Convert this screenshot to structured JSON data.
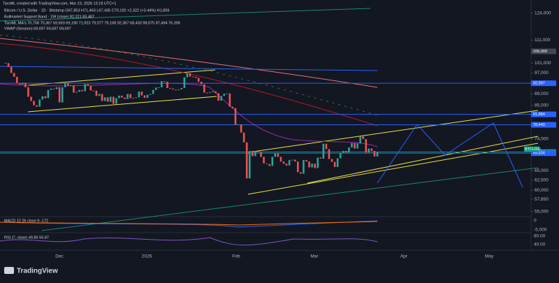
{
  "header": {
    "author_line": "TaroML created with TradingView.com, Mar 23, 2026 13:18 UTC+1",
    "lines": [
      "Bitcoin / U.S. Dollar · 1D · Bitstamp  O67,853  H71,463  L67,435  C70,192  +2,322 (+3.44%)  H1,859",
      "Bullmarket Support Band · 1W (close)  82,221  83,487",
      "TaroML MA's  70,758  70,367  69,693  69,190  71,923  79,077  79,168  92,367  68,433  98,075  87,494  76,306",
      "VWAP (Session)  69,697  69,697  69,697"
    ]
  },
  "chart_data": {
    "type": "candlestick",
    "log_scale": true,
    "ylim": [
      53860,
      130800
    ],
    "yticks": [
      {
        "value": 124000,
        "label": "124,000"
      },
      {
        "value": 111000,
        "label": "111,000"
      },
      {
        "value": 101000,
        "label": "101,000"
      },
      {
        "value": 97000,
        "label": "97,000"
      },
      {
        "value": 89000,
        "label": "89,000"
      },
      {
        "value": 85000,
        "label": "85,000"
      },
      {
        "value": 74000,
        "label": "74,000"
      },
      {
        "value": 65000,
        "label": "65,000"
      },
      {
        "value": 62500,
        "label": "62,500"
      },
      {
        "value": 60000,
        "label": "60,000"
      },
      {
        "value": 57850,
        "label": "57,850"
      },
      {
        "value": 55000,
        "label": "55,000"
      }
    ],
    "price_tags": [
      {
        "value": 106000,
        "label": "106,000",
        "color": "#434651"
      },
      {
        "value": 92997,
        "label": "92,997",
        "color": "#2962ff"
      },
      {
        "value": 81884,
        "label": "81,884",
        "color": "#2962ff"
      },
      {
        "value": 78440,
        "label": "78,440",
        "color": "#2962ff"
      },
      {
        "value": 70192,
        "label": "70,192",
        "color": "#089981"
      },
      {
        "value": 69834,
        "label": "69,834",
        "color": "#2962ff"
      }
    ],
    "symbol_tag": "BTCUSD",
    "closes": [
      101000,
      99500,
      97000,
      95500,
      93000,
      92500,
      93200,
      91500,
      88000,
      86500,
      85000,
      84500,
      87000,
      88200,
      87500,
      90500,
      91000,
      90800,
      91500,
      86000,
      91500,
      93000,
      92000,
      92200,
      89500,
      89800,
      90500,
      90000,
      92700,
      92000,
      90300,
      90200,
      88300,
      89000,
      86500,
      87800,
      86200,
      88000,
      85500,
      87500,
      88400,
      87700,
      87200,
      89000,
      87500,
      87600,
      87800,
      89900,
      88500,
      87600,
      88700,
      89000,
      90500,
      91400,
      91500,
      93800,
      93600,
      91200,
      91000,
      90600,
      90500,
      90700,
      91200,
      95300,
      96900,
      95600,
      95500,
      95100,
      93600,
      92600,
      89500,
      89400,
      89700,
      90000,
      89300,
      86600,
      88300,
      89100,
      89200,
      84500,
      84000,
      78500,
      78600,
      76000,
      73000,
      63000,
      70500,
      69000,
      70500,
      70100,
      68800,
      67000,
      66800,
      66300,
      68800,
      69800,
      68800,
      67500,
      66900,
      66400,
      67900,
      68000,
      67500,
      64600,
      64200,
      67900,
      67500,
      65900,
      66900,
      65700,
      68600,
      68300,
      72600,
      71000,
      68200,
      67400,
      66000,
      68400,
      69900,
      70500,
      70000,
      71500,
      72800,
      71200,
      72700,
      74800,
      74000,
      70000,
      71200,
      70500,
      68900,
      70192
    ],
    "time_labels": [
      "Dec",
      "2026",
      "Feb",
      "Mar",
      "Apr",
      "May"
    ]
  },
  "macd": {
    "label": "MACD 12 26 close 9  -172",
    "ticks": [
      "0",
      "-5,000"
    ]
  },
  "rsi": {
    "label": "RSI (7, close)  49.85  55.87",
    "ticks": [
      "80.00",
      "40.00"
    ]
  },
  "brand": "TradingView"
}
